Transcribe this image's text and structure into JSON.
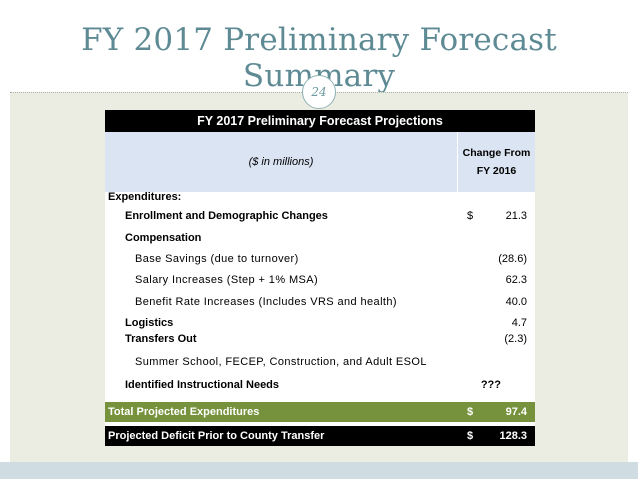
{
  "slide": {
    "title": "FY 2017 Preliminary Forecast Summary",
    "page_number": "24"
  },
  "table": {
    "title": "FY 2017 Preliminary Forecast Projections",
    "units_note": "($ in millions)",
    "column_header_line1": "Change From",
    "column_header_line2": "FY 2016",
    "section_label": "Expenditures:",
    "rows": [
      {
        "label": "Enrollment and Demographic Changes",
        "dollar": "$",
        "value": "21.3"
      },
      {
        "label": "Compensation",
        "dollar": "",
        "value": ""
      },
      {
        "label": "Base Savings (due to turnover)",
        "dollar": "",
        "value": "(28.6)"
      },
      {
        "label": "Salary Increases (Step + 1% MSA)",
        "dollar": "",
        "value": "62.3"
      },
      {
        "label": "Benefit Rate Increases (Includes VRS and health)",
        "dollar": "",
        "value": "40.0"
      },
      {
        "label": "Logistics",
        "dollar": "",
        "value": "4.7"
      },
      {
        "label": "Transfers Out",
        "dollar": "",
        "value": "(2.3)"
      },
      {
        "label": "Summer School, FECEP, Construction, and Adult ESOL",
        "dollar": "",
        "value": ""
      },
      {
        "label": "Identified Instructional Needs",
        "dollar": "",
        "value": "???"
      }
    ],
    "total_row": {
      "label": "Total Projected Expenditures",
      "dollar": "$",
      "value": "97.4"
    },
    "deficit_row": {
      "label": "Projected Deficit Prior to County Transfer",
      "dollar": "$",
      "value": "128.3"
    }
  },
  "colors": {
    "title_teal": "#5e8a94",
    "band_beige": "#ebece2",
    "subheader_blue": "#dbe4f2",
    "total_green": "#76923c",
    "header_black": "#000000"
  }
}
